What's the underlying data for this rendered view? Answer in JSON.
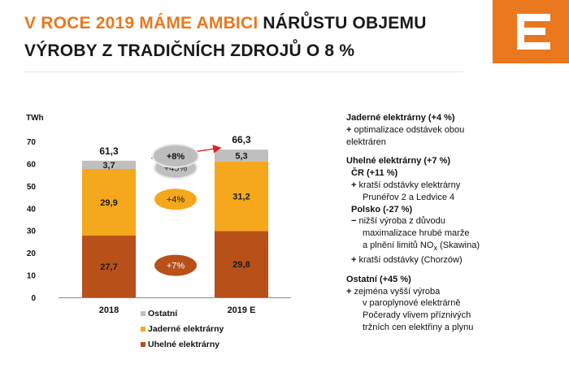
{
  "title": {
    "part1": "V ROCE 2019 MÁME AMBICI",
    "part2": "NÁRŮSTU OBJEMU",
    "line2": "VÝROBY Z TRADIČNÍCH ZDROJŮ O 8 %"
  },
  "logo": {
    "name": "cez-logo",
    "color": "#e9781e"
  },
  "colors": {
    "accent": "#e9781e",
    "coal": "#b8501a",
    "nuclear": "#f5a81c",
    "other": "#bfbfbf"
  },
  "chart_data": {
    "type": "bar",
    "stacked": true,
    "unit_label": "TWh",
    "categories": [
      "2018",
      "2019 E"
    ],
    "ylim": [
      0,
      70
    ],
    "yticks": [
      0,
      10,
      20,
      30,
      40,
      50,
      60,
      70
    ],
    "series": [
      {
        "name": "Uhelné elektrárny",
        "color": "#b8501a",
        "values": [
          27.7,
          29.8
        ],
        "labels": [
          "27,7",
          "29,8"
        ],
        "change": "+7%"
      },
      {
        "name": "Jaderné elektrárny",
        "color": "#f5a81c",
        "values": [
          29.9,
          31.2
        ],
        "labels": [
          "29,9",
          "31,2"
        ],
        "change": "+4%"
      },
      {
        "name": "Ostatní",
        "color": "#bfbfbf",
        "values": [
          3.7,
          5.3
        ],
        "labels": [
          "3,7",
          "5,3"
        ],
        "change": "+45%"
      }
    ],
    "totals": [
      61.3,
      66.3
    ],
    "total_labels": [
      "61,3",
      "66,3"
    ],
    "total_change": "+8%",
    "legend": "bottom"
  },
  "notes": {
    "nuclear": {
      "heading": "Jaderné elektrárny (+4 %)",
      "bullet1_sign": "+",
      "bullet1_a": "optimalizace odstávek obou",
      "bullet1_b": "elektráren"
    },
    "coal": {
      "heading": "Uhelné elektrárny (+7 %)",
      "cz_heading": "ČR (+11 %)",
      "cz_sign": "+",
      "cz_a": "kratší odstávky elektrárny",
      "cz_b": "Prunéřov 2 a Ledvice 4",
      "pl_heading": "Polsko (-27 %)",
      "pl_sign": "−",
      "pl_a": "nižší výroba z důvodu",
      "pl_b": "maximalizace hrubé marže",
      "pl_c_pre": "a plnění limitů NO",
      "pl_c_sub": "x",
      "pl_c_post": "(Skawina)",
      "pl2_sign": "+",
      "pl2": "kratší odstávky (Chorzów)"
    },
    "other": {
      "heading": "Ostatní (+45 %)",
      "sign": "+",
      "a": "zejména vyšší výroba",
      "b": "v paroplynové elektrárně",
      "c": "Počerady vlivem příznivých",
      "d": "tržních cen elektřiny a plynu"
    }
  }
}
